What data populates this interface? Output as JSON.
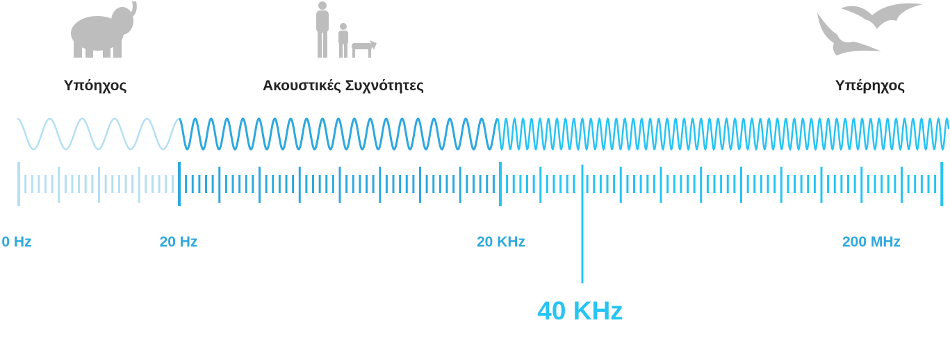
{
  "regions": [
    {
      "label": "Υπόηχος"
    },
    {
      "label": "Ακουστικές Συχνότητες"
    },
    {
      "label": "Υπέρηχος"
    }
  ],
  "scale": [
    {
      "label": "0 Hz"
    },
    {
      "label": "20 Hz"
    },
    {
      "label": "20 KHz"
    },
    {
      "label": "200 MHz"
    }
  ],
  "highlight": {
    "label": "40 KHz"
  }
}
